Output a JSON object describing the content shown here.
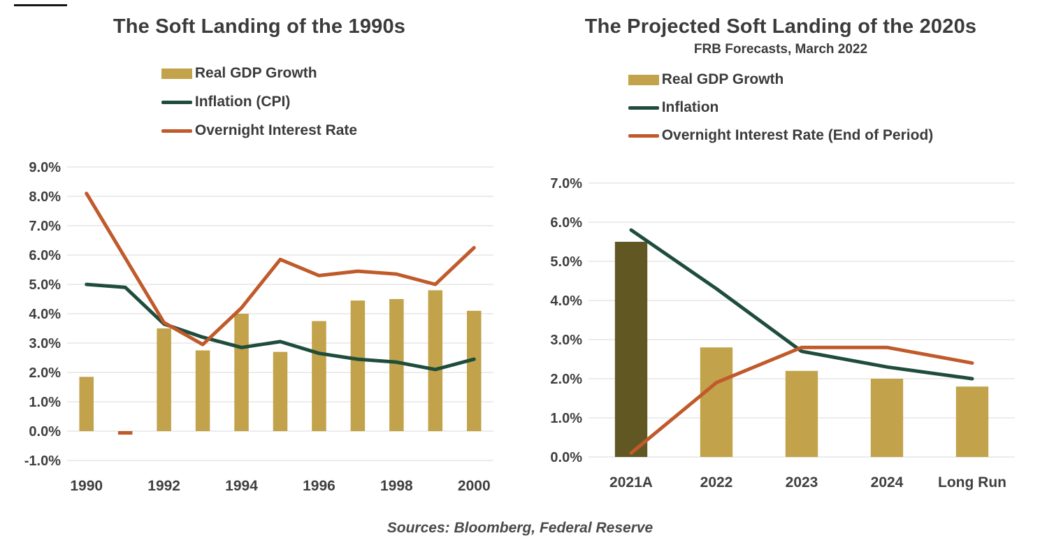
{
  "footer": {
    "sources": "Sources: Bloomberg, Federal Reserve"
  },
  "colors": {
    "background": "#FFFFFF",
    "grid": "#D9D9D9",
    "axis_text": "#3F3F3F",
    "title_text": "#3B3B3B",
    "bar_gold": "#C2A24A",
    "bar_dark_olive": "#615722",
    "line_green": "#1F4D3C",
    "line_orange": "#C05A2B"
  },
  "chart_data": [
    {
      "type": "bar",
      "title": "The Soft Landing of the 1990s",
      "subtitle": "",
      "legend_position": "top",
      "grid": true,
      "categories": [
        "1990",
        "1991",
        "1992",
        "1993",
        "1994",
        "1995",
        "1996",
        "1997",
        "1998",
        "1999",
        "2000"
      ],
      "x_tick_labels": [
        "1990",
        "1992",
        "1994",
        "1996",
        "1998",
        "2000"
      ],
      "ylim": [
        -1.0,
        9.0
      ],
      "ytick_step": 1.0,
      "series": [
        {
          "name": "Real GDP Growth",
          "type": "bar",
          "color": "#C2A24A",
          "negative_color": "#C05A2B",
          "values": [
            1.85,
            -0.12,
            3.5,
            2.75,
            4.0,
            2.7,
            3.75,
            4.45,
            4.5,
            4.8,
            4.1
          ]
        },
        {
          "name": "Inflation (CPI)",
          "type": "line",
          "color": "#1F4D3C",
          "values": [
            5.0,
            4.9,
            3.65,
            3.2,
            2.85,
            3.05,
            2.65,
            2.45,
            2.35,
            2.1,
            2.45
          ]
        },
        {
          "name": "Overnight Interest Rate",
          "type": "line",
          "color": "#C05A2B",
          "values": [
            8.1,
            5.9,
            3.7,
            2.95,
            4.2,
            5.85,
            5.3,
            5.45,
            5.35,
            5.0,
            6.25
          ]
        }
      ]
    },
    {
      "type": "bar",
      "title": "The Projected Soft Landing of the 2020s",
      "subtitle": "FRB Forecasts, March 2022",
      "legend_position": "top",
      "grid": true,
      "categories": [
        "2021A",
        "2022",
        "2023",
        "2024",
        "Long Run"
      ],
      "x_tick_labels": [
        "2021A",
        "2022",
        "2023",
        "2024",
        "Long Run"
      ],
      "ylim": [
        0.0,
        7.0
      ],
      "ytick_step": 1.0,
      "series": [
        {
          "name": "Real GDP Growth",
          "type": "bar",
          "color": "#C2A24A",
          "bar_colors": [
            "#615722",
            null,
            null,
            null,
            null
          ],
          "values": [
            5.5,
            2.8,
            2.2,
            2.0,
            1.8
          ]
        },
        {
          "name": "Inflation",
          "type": "line",
          "color": "#1F4D3C",
          "values": [
            5.8,
            4.3,
            2.7,
            2.3,
            2.0
          ]
        },
        {
          "name": "Overnight Interest Rate (End of Period)",
          "type": "line",
          "color": "#C05A2B",
          "values": [
            0.1,
            1.9,
            2.8,
            2.8,
            2.4
          ]
        }
      ]
    }
  ]
}
